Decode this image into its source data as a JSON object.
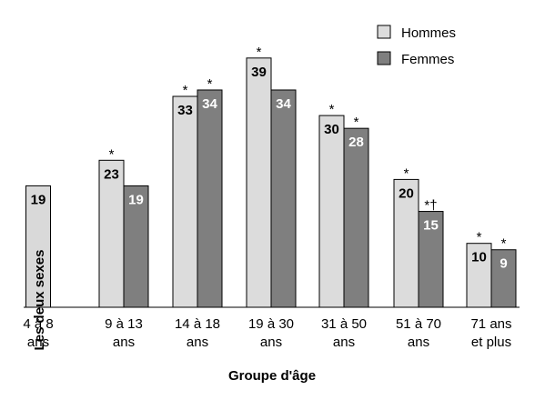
{
  "chart_data": {
    "type": "bar",
    "title": "",
    "xlabel": "Groupe d'âge",
    "ylabel": "",
    "ylim": [
      0,
      39
    ],
    "grid": false,
    "legend_position": "top-right",
    "categories": [
      [
        "4 à 8",
        "ans"
      ],
      [
        "9 à 13",
        "ans"
      ],
      [
        "14 à 18",
        "ans"
      ],
      [
        "19 à 30",
        "ans"
      ],
      [
        "31 à 50",
        "ans"
      ],
      [
        "51 à 70",
        "ans"
      ],
      [
        "71 ans",
        "et plus"
      ]
    ],
    "combined": {
      "name": "Les deux sexes",
      "category_index": 0,
      "value": 19,
      "label": "19",
      "marker": "",
      "color": "#d9d9d9"
    },
    "series": [
      {
        "name": "Hommes",
        "color": "#dcdcdc",
        "values": [
          null,
          23,
          33,
          39,
          30,
          20,
          10
        ],
        "labels": [
          null,
          "23",
          "33",
          "39",
          "30",
          "20",
          "10"
        ],
        "markers": [
          null,
          "*",
          "*",
          "*",
          "*",
          "*",
          "*"
        ]
      },
      {
        "name": "Femmes",
        "color": "#7f7f7f",
        "values": [
          null,
          19,
          34,
          34,
          28,
          15,
          9
        ],
        "labels": [
          null,
          "19",
          "34",
          "34",
          "28",
          "15",
          "9"
        ],
        "markers": [
          null,
          "",
          "*",
          "",
          "*",
          "*†",
          "*"
        ]
      }
    ]
  }
}
